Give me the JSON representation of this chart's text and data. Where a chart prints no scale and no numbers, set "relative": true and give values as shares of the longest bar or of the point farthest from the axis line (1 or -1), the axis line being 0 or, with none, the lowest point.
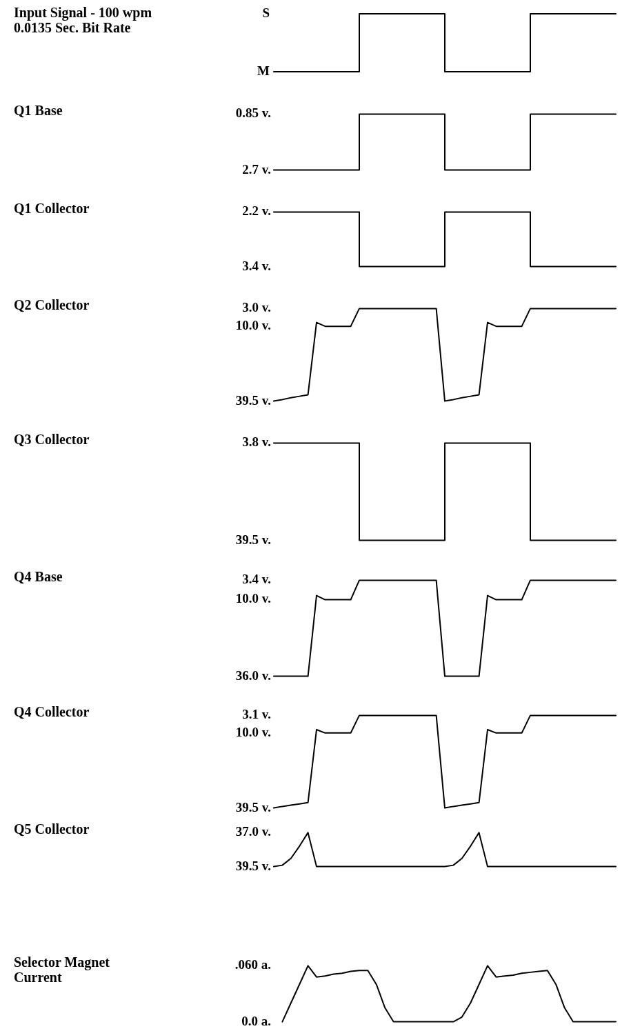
{
  "chart_data": [
    {
      "type": "step",
      "ylabel": "Input Signal - 100 wpm 0.0135 Sec. Bit Rate",
      "tick_labels": "y",
      "color": "#000000",
      "categories": [
        null,
        null,
        null,
        null,
        null,
        null,
        null,
        null,
        null,
        null,
        null,
        null,
        null,
        null,
        null,
        null,
        null,
        null,
        null,
        null,
        null,
        null,
        null,
        null,
        null,
        null,
        null,
        null,
        null,
        null,
        null,
        null,
        null,
        null,
        null,
        null,
        null,
        null,
        null,
        null,
        null
      ],
      "values": [
        0,
        0,
        0,
        0,
        0,
        0,
        0,
        0,
        0,
        0,
        1,
        1,
        1,
        1,
        1,
        1,
        1,
        1,
        1,
        1,
        0,
        0,
        0,
        0,
        0,
        0,
        0,
        0,
        0,
        0,
        1,
        1,
        1,
        1,
        1,
        1,
        1,
        1,
        1,
        1,
        1
      ],
      "relative": true,
      "annotations": [
        "S",
        "M"
      ]
    },
    {
      "type": "step",
      "ylabel": "Q1 Base",
      "tick_labels": "y",
      "color": "#000000",
      "categories": [
        null,
        null,
        null,
        null,
        null,
        null,
        null,
        null,
        null,
        null,
        null,
        null,
        null,
        null,
        null,
        null,
        null,
        null,
        null,
        null,
        null,
        null,
        null,
        null,
        null,
        null,
        null,
        null,
        null,
        null,
        null,
        null,
        null,
        null,
        null,
        null,
        null,
        null,
        null,
        null,
        null
      ],
      "values": [
        2.7,
        2.7,
        2.7,
        2.7,
        2.7,
        2.7,
        2.7,
        2.7,
        2.7,
        2.7,
        0.85,
        0.85,
        0.85,
        0.85,
        0.85,
        0.85,
        0.85,
        0.85,
        0.85,
        0.85,
        2.7,
        2.7,
        2.7,
        2.7,
        2.7,
        2.7,
        2.7,
        2.7,
        2.7,
        2.7,
        0.85,
        0.85,
        0.85,
        0.85,
        0.85,
        0.85,
        0.85,
        0.85,
        0.85,
        0.85,
        0.85
      ],
      "ylim": [
        2.7,
        0.85
      ],
      "yticks": [
        {
          "value": 0.85,
          "label": "0.85 v."
        },
        {
          "value": 2.7,
          "label": "2.7 v."
        }
      ]
    },
    {
      "type": "step",
      "ylabel": "Q1 Collector",
      "tick_labels": "y",
      "color": "#000000",
      "categories": [
        null,
        null,
        null,
        null,
        null,
        null,
        null,
        null,
        null,
        null,
        null,
        null,
        null,
        null,
        null,
        null,
        null,
        null,
        null,
        null,
        null,
        null,
        null,
        null,
        null,
        null,
        null,
        null,
        null,
        null,
        null,
        null,
        null,
        null,
        null,
        null,
        null,
        null,
        null,
        null,
        null
      ],
      "values": [
        2.2,
        2.2,
        2.2,
        2.2,
        2.2,
        2.2,
        2.2,
        2.2,
        2.2,
        2.2,
        3.4,
        3.4,
        3.4,
        3.4,
        3.4,
        3.4,
        3.4,
        3.4,
        3.4,
        3.4,
        2.2,
        2.2,
        2.2,
        2.2,
        2.2,
        2.2,
        2.2,
        2.2,
        2.2,
        2.2,
        3.4,
        3.4,
        3.4,
        3.4,
        3.4,
        3.4,
        3.4,
        3.4,
        3.4,
        3.4,
        3.4
      ],
      "ylim": [
        3.4,
        2.2
      ],
      "yticks": [
        {
          "value": 2.2,
          "label": "2.2 v."
        },
        {
          "value": 3.4,
          "label": "3.4 v."
        }
      ]
    },
    {
      "type": "line",
      "ylabel": "Q2 Collector",
      "tick_labels": "y",
      "color": "#000000",
      "categories": [
        null,
        null,
        null,
        null,
        null,
        null,
        null,
        null,
        null,
        null,
        null,
        null,
        null,
        null,
        null,
        null,
        null,
        null,
        null,
        null,
        null,
        null,
        null,
        null,
        null,
        null,
        null,
        null,
        null,
        null,
        null,
        null,
        null,
        null,
        null,
        null,
        null,
        null,
        null,
        null,
        null
      ],
      "values": [
        39.5,
        38.9,
        38.2,
        37.6,
        37.0,
        8.5,
        10,
        10,
        10,
        10,
        3,
        3,
        3,
        3,
        3,
        3,
        3,
        3,
        3,
        3,
        39.5,
        38.9,
        38.2,
        37.6,
        37.0,
        8.5,
        10,
        10,
        10,
        10,
        3,
        3,
        3,
        3,
        3,
        3,
        3,
        3,
        3,
        3,
        3
      ],
      "ylim": [
        39.5,
        3
      ],
      "yticks": [
        {
          "value": 3,
          "label": "3.0 v."
        },
        {
          "value": 10,
          "label": "10.0 v."
        },
        {
          "value": 39.5,
          "label": "39.5 v."
        }
      ]
    },
    {
      "type": "step",
      "ylabel": "Q3 Collector",
      "tick_labels": "y",
      "color": "#000000",
      "categories": [
        null,
        null,
        null,
        null,
        null,
        null,
        null,
        null,
        null,
        null,
        null,
        null,
        null,
        null,
        null,
        null,
        null,
        null,
        null,
        null,
        null,
        null,
        null,
        null,
        null,
        null,
        null,
        null,
        null,
        null,
        null,
        null,
        null,
        null,
        null,
        null,
        null,
        null,
        null,
        null,
        null
      ],
      "values": [
        3.8,
        3.8,
        3.8,
        3.8,
        3.8,
        3.8,
        3.8,
        3.8,
        3.8,
        3.8,
        39.5,
        39.5,
        39.5,
        39.5,
        39.5,
        39.5,
        39.5,
        39.5,
        39.5,
        39.5,
        3.8,
        3.8,
        3.8,
        3.8,
        3.8,
        3.8,
        3.8,
        3.8,
        3.8,
        3.8,
        39.5,
        39.5,
        39.5,
        39.5,
        39.5,
        39.5,
        39.5,
        39.5,
        39.5,
        39.5,
        39.5
      ],
      "ylim": [
        39.5,
        3.8
      ],
      "yticks": [
        {
          "value": 3.8,
          "label": "3.8 v."
        },
        {
          "value": 39.5,
          "label": "39.5 v."
        }
      ]
    },
    {
      "type": "line",
      "ylabel": "Q4 Base",
      "tick_labels": "y",
      "color": "#000000",
      "categories": [
        null,
        null,
        null,
        null,
        null,
        null,
        null,
        null,
        null,
        null,
        null,
        null,
        null,
        null,
        null,
        null,
        null,
        null,
        null,
        null,
        null,
        null,
        null,
        null,
        null,
        null,
        null,
        null,
        null,
        null,
        null,
        null,
        null,
        null,
        null,
        null,
        null,
        null,
        null,
        null,
        null
      ],
      "values": [
        36,
        36,
        36,
        36,
        36,
        8.6,
        10,
        10,
        10,
        10,
        3.4,
        3.4,
        3.4,
        3.4,
        3.4,
        3.4,
        3.4,
        3.4,
        3.4,
        3.4,
        36,
        36,
        36,
        36,
        36,
        8.6,
        10,
        10,
        10,
        10,
        3.4,
        3.4,
        3.4,
        3.4,
        3.4,
        3.4,
        3.4,
        3.4,
        3.4,
        3.4,
        3.4
      ],
      "ylim": [
        36,
        3.4
      ],
      "yticks": [
        {
          "value": 3.4,
          "label": "3.4 v."
        },
        {
          "value": 10,
          "label": "10.0 v."
        },
        {
          "value": 36,
          "label": "36.0 v."
        }
      ]
    },
    {
      "type": "line",
      "ylabel": "Q4 Collector",
      "tick_labels": "y",
      "color": "#000000",
      "categories": [
        null,
        null,
        null,
        null,
        null,
        null,
        null,
        null,
        null,
        null,
        null,
        null,
        null,
        null,
        null,
        null,
        null,
        null,
        null,
        null,
        null,
        null,
        null,
        null,
        null,
        null,
        null,
        null,
        null,
        null,
        null,
        null,
        null,
        null,
        null,
        null,
        null,
        null,
        null,
        null,
        null
      ],
      "values": [
        39.5,
        38.9,
        38.4,
        37.9,
        37.4,
        8.7,
        10,
        10,
        10,
        10,
        3.1,
        3.1,
        3.1,
        3.1,
        3.1,
        3.1,
        3.1,
        3.1,
        3.1,
        3.1,
        39.5,
        38.9,
        38.4,
        37.9,
        37.4,
        8.7,
        10,
        10,
        10,
        10,
        3.1,
        3.1,
        3.1,
        3.1,
        3.1,
        3.1,
        3.1,
        3.1,
        3.1,
        3.1,
        3.1
      ],
      "ylim": [
        39.5,
        3.1
      ],
      "yticks": [
        {
          "value": 3.1,
          "label": "3.1 v."
        },
        {
          "value": 10,
          "label": "10.0 v."
        },
        {
          "value": 39.5,
          "label": "39.5 v."
        }
      ]
    },
    {
      "type": "line",
      "ylabel": "Q5 Collector",
      "tick_labels": "y",
      "color": "#000000",
      "categories": [
        null,
        null,
        null,
        null,
        null,
        null,
        null,
        null,
        null,
        null,
        null,
        null,
        null,
        null,
        null,
        null,
        null,
        null,
        null,
        null,
        null,
        null,
        null,
        null,
        null,
        null,
        null,
        null,
        null,
        null,
        null,
        null,
        null,
        null,
        null,
        null,
        null,
        null,
        null,
        null,
        null
      ],
      "values": [
        39.5,
        39.4,
        38.9,
        38.0,
        37.0,
        39.5,
        39.5,
        39.5,
        39.5,
        39.5,
        39.5,
        39.5,
        39.5,
        39.5,
        39.5,
        39.5,
        39.5,
        39.5,
        39.5,
        39.5,
        39.5,
        39.4,
        38.9,
        38.0,
        37.0,
        39.5,
        39.5,
        39.5,
        39.5,
        39.5,
        39.5,
        39.5,
        39.5,
        39.5,
        39.5,
        39.5,
        39.5,
        39.5,
        39.5,
        39.5,
        39.5
      ],
      "ylim": [
        39.5,
        37
      ],
      "yticks": [
        {
          "value": 37,
          "label": "37.0 v."
        },
        {
          "value": 39.5,
          "label": "39.5 v."
        }
      ]
    },
    {
      "type": "line",
      "ylabel": "Selector Magnet Current",
      "tick_labels": "y",
      "color": "#000000",
      "categories": [
        null,
        null,
        null,
        null,
        null,
        null,
        null,
        null,
        null,
        null,
        null,
        null,
        null,
        null,
        null,
        null,
        null,
        null,
        null,
        null,
        null,
        null,
        null,
        null,
        null,
        null,
        null,
        null,
        null,
        null,
        null,
        null,
        null,
        null,
        null,
        null,
        null,
        null,
        null,
        null,
        null
      ],
      "values": [
        null,
        0,
        0.02,
        0.04,
        0.06,
        0.048,
        0.049,
        0.051,
        0.052,
        0.054,
        0.055,
        0.055,
        0.04,
        0.015,
        0,
        0,
        0,
        0,
        0,
        0,
        0,
        0,
        0.005,
        0.02,
        0.04,
        0.06,
        0.048,
        0.049,
        0.05,
        0.052,
        0.053,
        0.054,
        0.055,
        0.04,
        0.015,
        0,
        0,
        0,
        0,
        0,
        0
      ],
      "ylim": [
        0,
        0.06
      ],
      "yticks": [
        {
          "value": 0.06,
          "label": ".060 a."
        },
        {
          "value": 0,
          "label": "0.0 a."
        }
      ]
    }
  ]
}
